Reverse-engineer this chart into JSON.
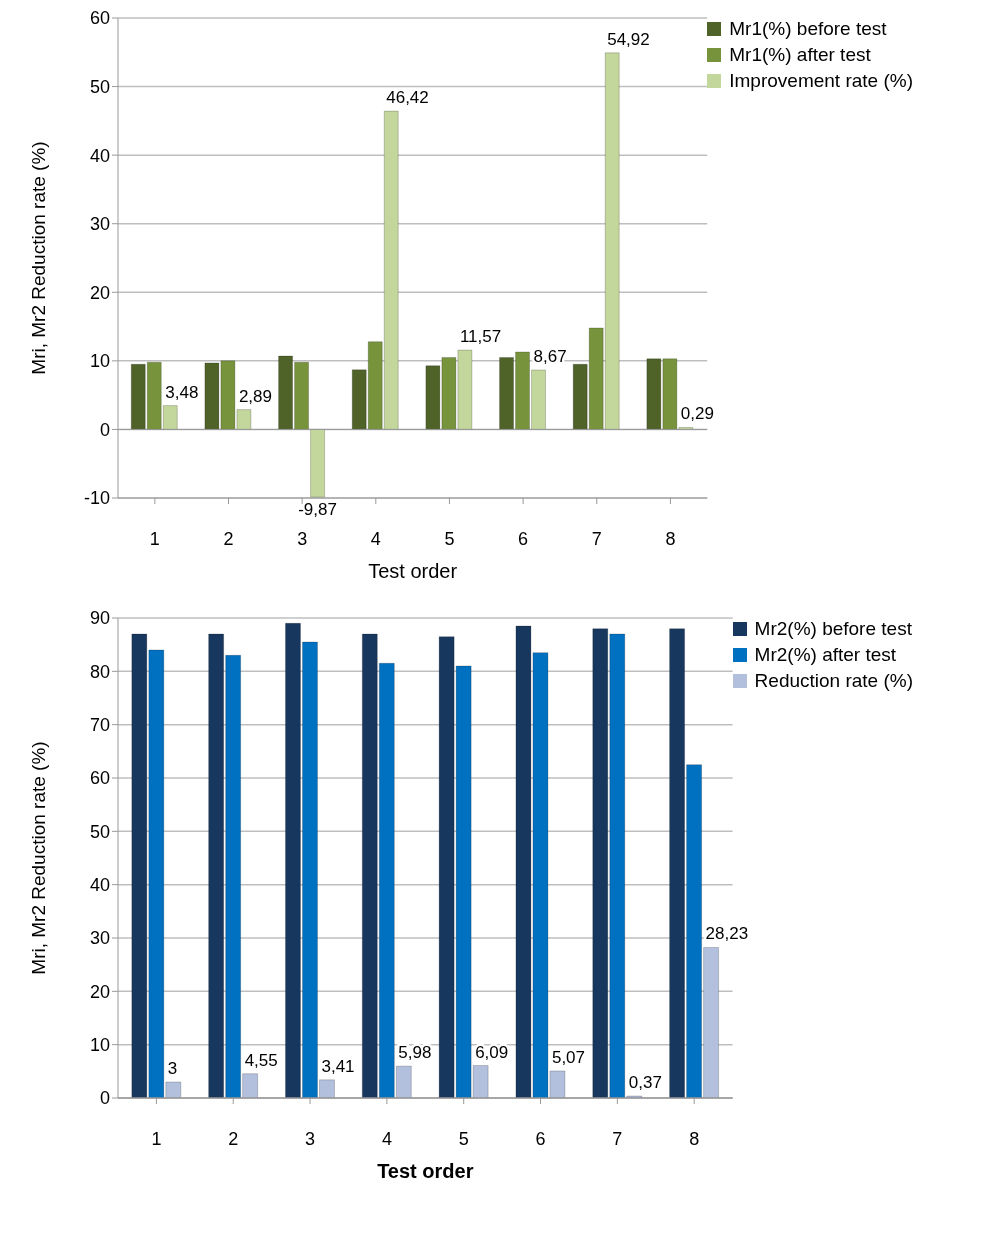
{
  "chart_data": [
    {
      "type": "bar",
      "xlabel": "Test order",
      "ylabel": "Mri, Mr2 Reduction rate   (%)",
      "categories": [
        "1",
        "2",
        "3",
        "4",
        "5",
        "6",
        "7",
        "8"
      ],
      "ylim": [
        -10,
        60
      ],
      "yticks": [
        -10,
        0,
        10,
        20,
        30,
        40,
        50,
        60
      ],
      "grid": "y",
      "legend": "top right",
      "series": [
        {
          "name": "Mr1(%) before test",
          "color": "#4f6228",
          "values": [
            9.5,
            9.7,
            10.7,
            8.7,
            9.3,
            10.5,
            9.5,
            10.3
          ]
        },
        {
          "name": "Mr1(%) after  test",
          "color": "#77933c",
          "values": [
            9.8,
            10,
            9.8,
            12.8,
            10.5,
            11.3,
            14.8,
            10.3
          ]
        },
        {
          "name": "Improvement rate (%)",
          "color": "#c3d69b",
          "values": [
            3.48,
            2.89,
            -9.87,
            46.42,
            11.57,
            8.67,
            54.92,
            0.29
          ],
          "value_labels": [
            "3,48",
            "2,89",
            "-9,87",
            "46,42",
            "11,57",
            "8,67",
            "54,92",
            "0,29"
          ]
        }
      ]
    },
    {
      "type": "bar",
      "xlabel": "Test order",
      "ylabel": "Mri, Mr2 Reduction rate   (%)",
      "categories": [
        "1",
        "2",
        "3",
        "4",
        "5",
        "6",
        "7",
        "8"
      ],
      "ylim": [
        0,
        90
      ],
      "yticks": [
        0,
        10,
        20,
        30,
        40,
        50,
        60,
        70,
        80,
        90
      ],
      "grid": "y",
      "legend": "top right",
      "series": [
        {
          "name": "Mr2(%) before test",
          "color": "#17375e",
          "values": [
            87,
            87,
            89,
            87,
            86.5,
            88.5,
            88,
            88
          ]
        },
        {
          "name": "Mr2(%) after  test",
          "color": "#0070c0",
          "values": [
            84,
            83,
            85.5,
            81.5,
            81,
            83.5,
            87,
            62.5
          ]
        },
        {
          "name": "Reduction rate    (%)",
          "color": "#b3c0dd",
          "values": [
            3,
            4.55,
            3.41,
            5.98,
            6.09,
            5.07,
            0.37,
            28.23
          ],
          "value_labels": [
            "3",
            "4,55",
            "3,41",
            "5,98",
            "6,09",
            "5,07",
            "0,37",
            "28,23"
          ]
        }
      ]
    }
  ]
}
